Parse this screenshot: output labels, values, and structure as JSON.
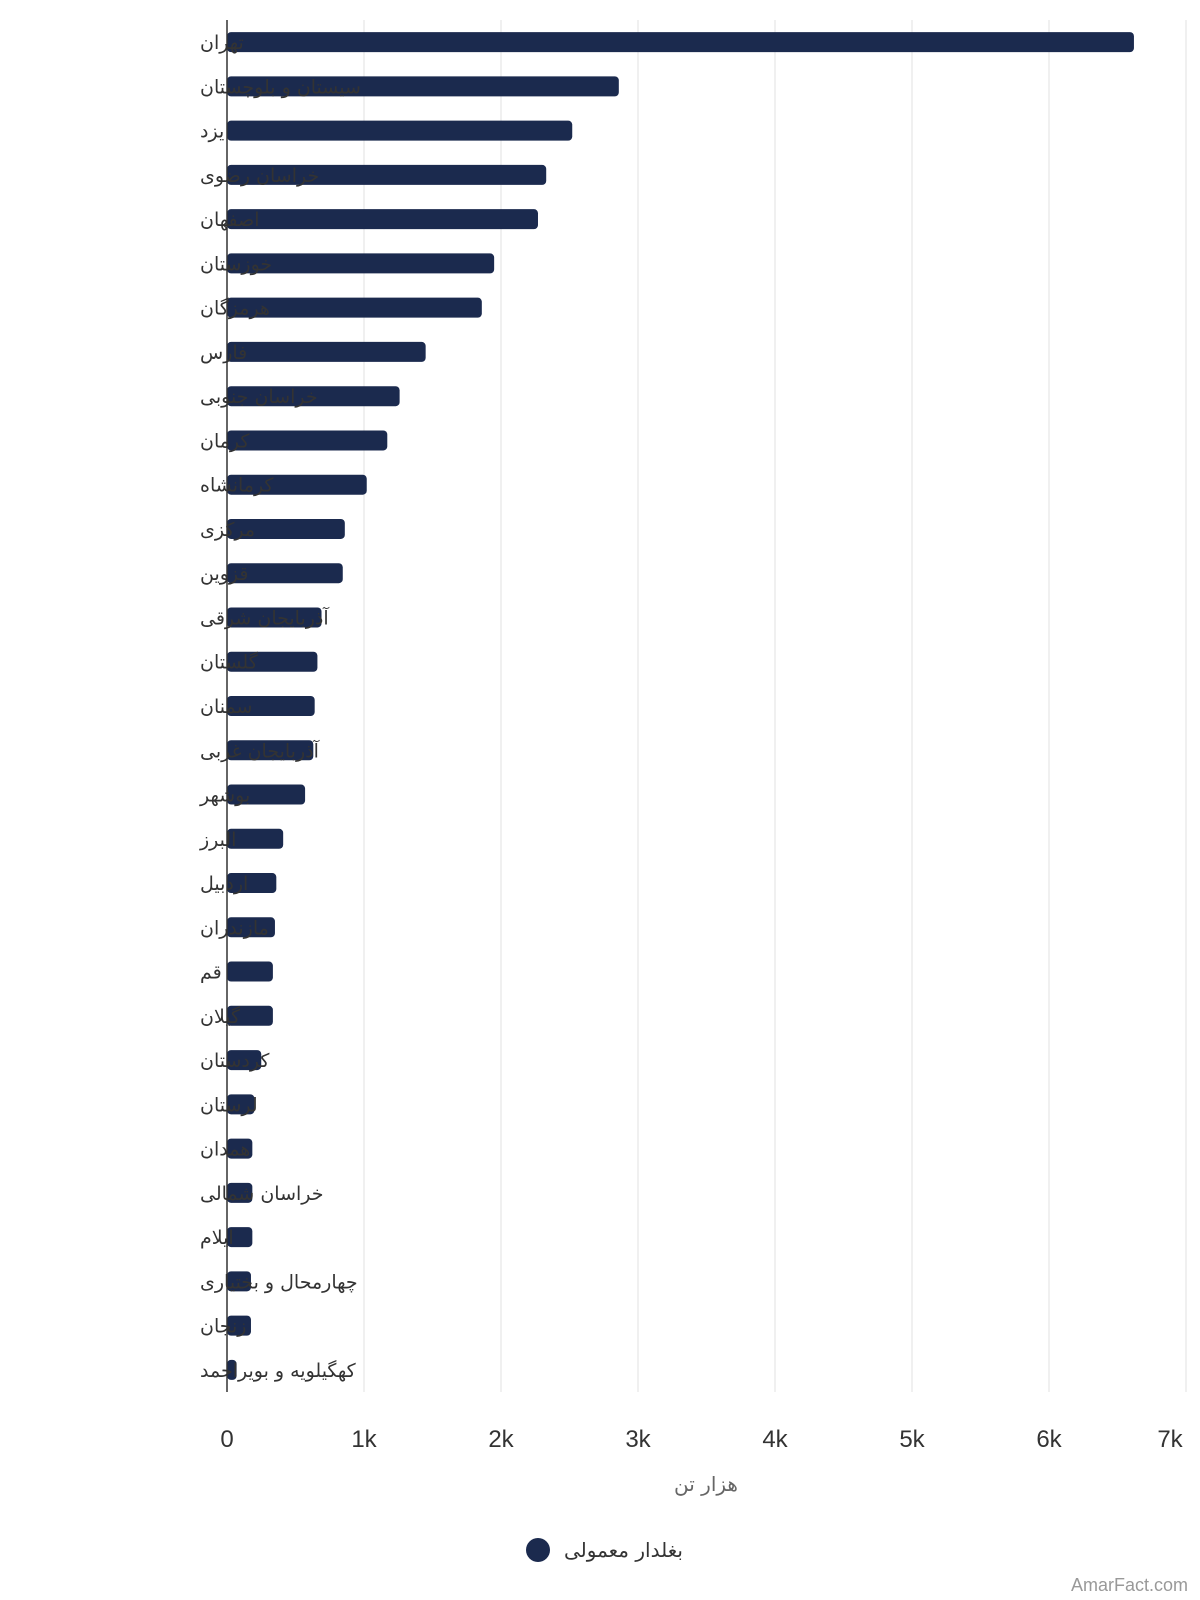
{
  "chart_data": {
    "type": "bar",
    "orientation": "horizontal",
    "categories": [
      "تهران",
      "سیستان و بلوچستان",
      "یزد",
      "خراسان رضوی",
      "اصفهان",
      "خوزستان",
      "هرمزگان",
      "فارس",
      "خراسان جنوبی",
      "کرمان",
      "کرمانشاه",
      "مرکزی",
      "قزوین",
      "آذربایجان شرقی",
      "گلستان",
      "سمنان",
      "آذربایجان غربی",
      "بوشهر",
      "البرز",
      "اردبیل",
      "مازندران",
      "قم",
      "گیلان",
      "کردستان",
      "لرستان",
      "همدان",
      "خراسان شمالی",
      "ایلام",
      "چهارمحال و بختیاری",
      "زنجان",
      "کهگیلویه و بویراحمد"
    ],
    "series": [
      {
        "name": "بغلدار معمولی",
        "color": "#1b2a4e",
        "values": [
          6620,
          2860,
          2520,
          2330,
          2270,
          1950,
          1860,
          1450,
          1260,
          1170,
          1020,
          860,
          845,
          690,
          660,
          640,
          630,
          570,
          410,
          360,
          350,
          335,
          335,
          250,
          200,
          185,
          185,
          185,
          175,
          175,
          70
        ]
      }
    ],
    "xlim": [
      0,
      7000
    ],
    "xticks": [
      0,
      1000,
      2000,
      3000,
      4000,
      5000,
      6000,
      7000
    ],
    "xtick_labels": [
      "0",
      "1k",
      "2k",
      "3k",
      "4k",
      "5k",
      "6k",
      "7k"
    ],
    "xlabel": "هزار تن",
    "grid": true,
    "legend_position": "bottom"
  },
  "credit": "AmarFact.com"
}
